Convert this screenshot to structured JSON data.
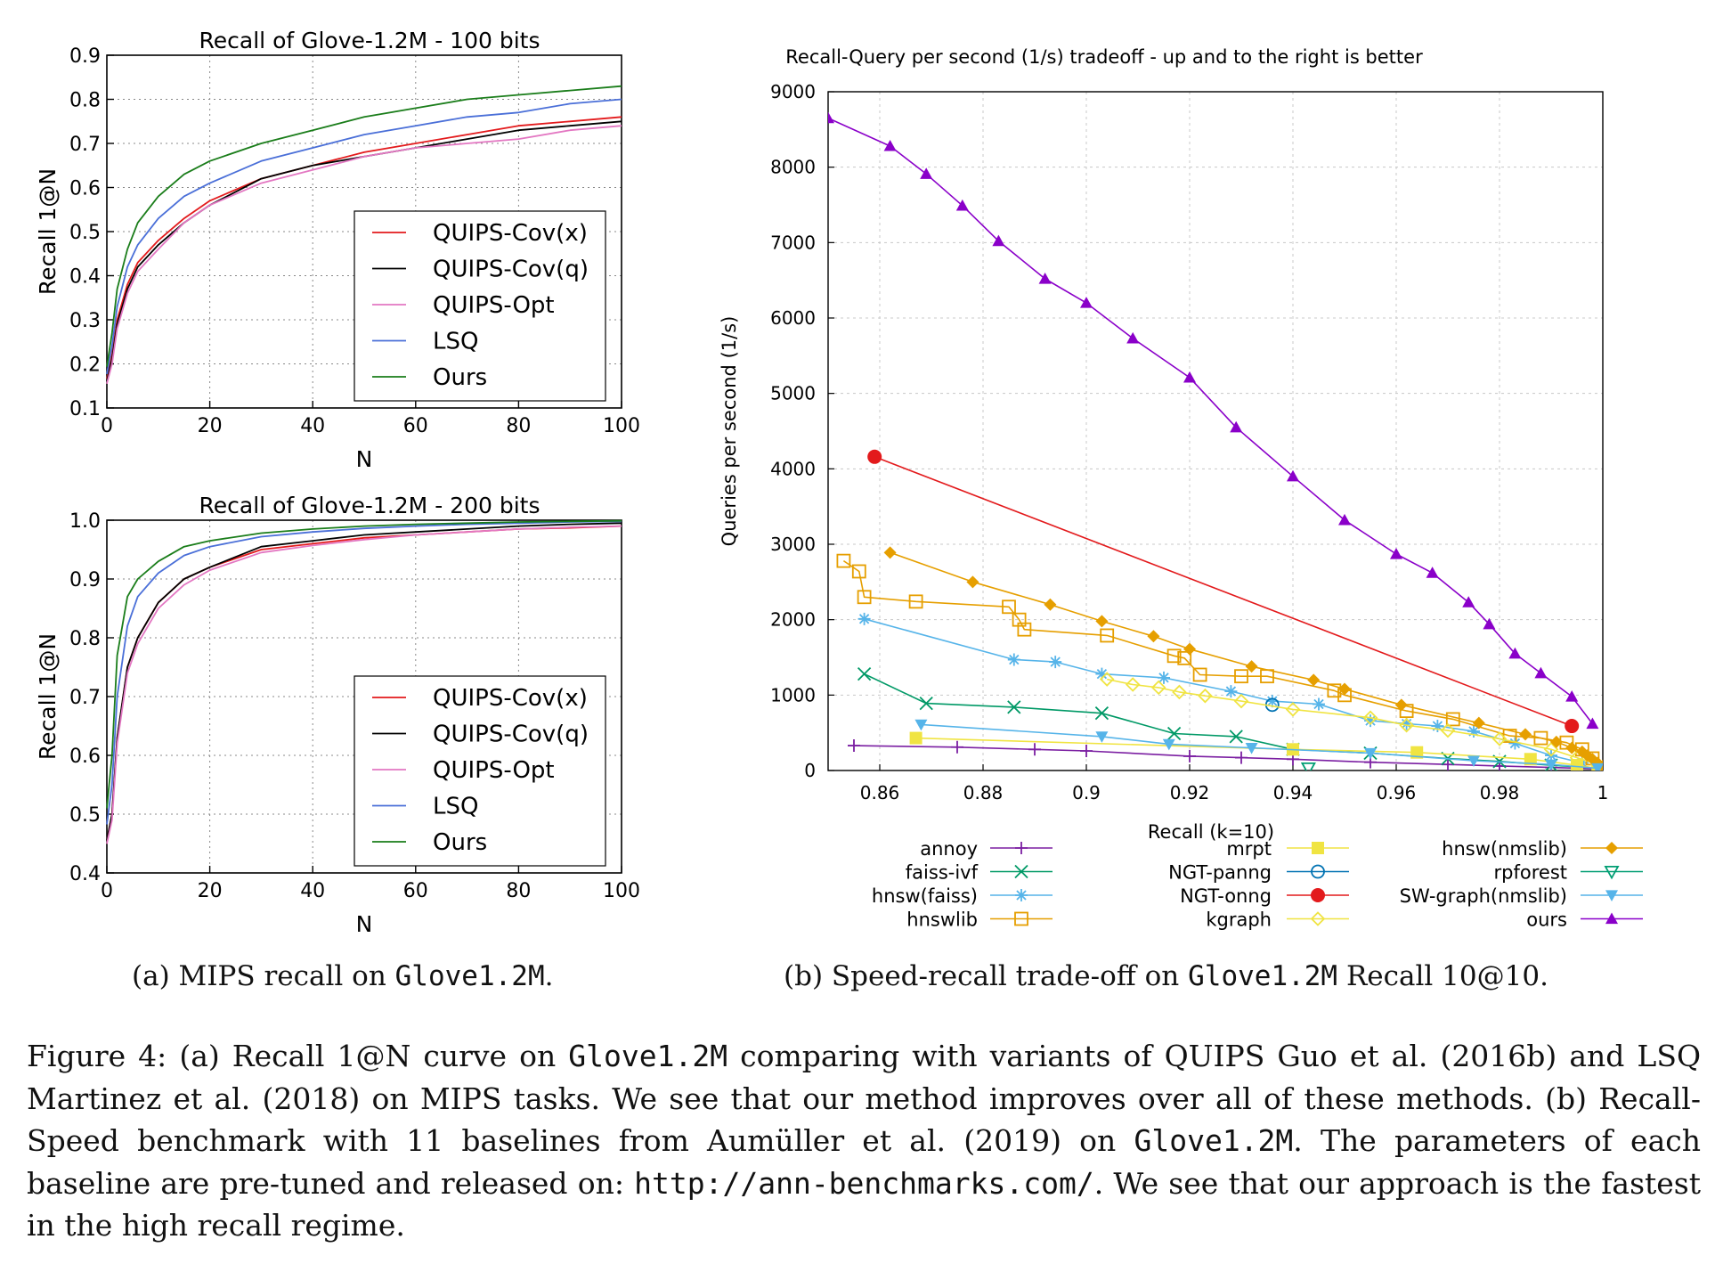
{
  "chart_data": [
    {
      "type": "line",
      "title": "Recall of Glove-1.2M - 100 bits",
      "xlabel": "N",
      "ylabel": "Recall 1@N",
      "xlim": [
        0,
        100
      ],
      "ylim": [
        0.1,
        0.9
      ],
      "xticks": [
        "0",
        "20",
        "40",
        "60",
        "80",
        "100"
      ],
      "yticks": [
        "0.1",
        "0.2",
        "0.3",
        "0.4",
        "0.5",
        "0.6",
        "0.7",
        "0.8",
        "0.9"
      ],
      "grid": true,
      "legend_position": "lower-right",
      "x": [
        1,
        2,
        4,
        6,
        10,
        15,
        20,
        30,
        40,
        50,
        60,
        70,
        80,
        90,
        100
      ],
      "series": [
        {
          "name": "QUIPS-Cov(x)",
          "color": "#e31a1c",
          "values": [
            0.22,
            0.3,
            0.38,
            0.43,
            0.48,
            0.53,
            0.57,
            0.62,
            0.65,
            0.68,
            0.7,
            0.72,
            0.74,
            0.75,
            0.76
          ]
        },
        {
          "name": "QUIPS-Cov(q)",
          "color": "#000000",
          "values": [
            0.21,
            0.29,
            0.37,
            0.42,
            0.47,
            0.52,
            0.56,
            0.62,
            0.65,
            0.67,
            0.69,
            0.71,
            0.73,
            0.74,
            0.75
          ]
        },
        {
          "name": "QUIPS-Opt",
          "color": "#e377c2",
          "values": [
            0.2,
            0.28,
            0.36,
            0.41,
            0.46,
            0.52,
            0.56,
            0.61,
            0.64,
            0.67,
            0.69,
            0.7,
            0.71,
            0.73,
            0.74
          ]
        },
        {
          "name": "LSQ",
          "color": "#4a6fd8",
          "values": [
            0.24,
            0.33,
            0.42,
            0.47,
            0.53,
            0.58,
            0.61,
            0.66,
            0.69,
            0.72,
            0.74,
            0.76,
            0.77,
            0.79,
            0.8
          ]
        },
        {
          "name": "Ours",
          "color": "#1a7d1a",
          "values": [
            0.27,
            0.37,
            0.46,
            0.52,
            0.58,
            0.63,
            0.66,
            0.7,
            0.73,
            0.76,
            0.78,
            0.8,
            0.81,
            0.82,
            0.83
          ]
        }
      ]
    },
    {
      "type": "line",
      "title": "Recall of Glove-1.2M - 200 bits",
      "xlabel": "N",
      "ylabel": "Recall 1@N",
      "xlim": [
        0,
        100
      ],
      "ylim": [
        0.4,
        1.0
      ],
      "xticks": [
        "0",
        "20",
        "40",
        "60",
        "80",
        "100"
      ],
      "yticks": [
        "0.4",
        "0.5",
        "0.6",
        "0.7",
        "0.8",
        "0.9",
        "1.0"
      ],
      "grid": true,
      "legend_position": "lower-right",
      "x": [
        1,
        2,
        4,
        6,
        10,
        15,
        20,
        30,
        40,
        50,
        60,
        70,
        80,
        90,
        100
      ],
      "series": [
        {
          "name": "QUIPS-Cov(x)",
          "color": "#e31a1c",
          "values": [
            0.5,
            0.63,
            0.75,
            0.8,
            0.86,
            0.9,
            0.92,
            0.95,
            0.96,
            0.97,
            0.975,
            0.98,
            0.985,
            0.987,
            0.99
          ]
        },
        {
          "name": "QUIPS-Cov(q)",
          "color": "#000000",
          "values": [
            0.5,
            0.63,
            0.75,
            0.8,
            0.86,
            0.9,
            0.92,
            0.955,
            0.965,
            0.975,
            0.98,
            0.985,
            0.99,
            0.993,
            0.995
          ]
        },
        {
          "name": "QUIPS-Opt",
          "color": "#e377c2",
          "values": [
            0.49,
            0.62,
            0.74,
            0.79,
            0.85,
            0.89,
            0.915,
            0.945,
            0.957,
            0.967,
            0.975,
            0.98,
            0.985,
            0.988,
            0.99
          ]
        },
        {
          "name": "LSQ",
          "color": "#4a6fd8",
          "values": [
            0.55,
            0.7,
            0.82,
            0.87,
            0.91,
            0.94,
            0.955,
            0.972,
            0.98,
            0.986,
            0.99,
            0.993,
            0.995,
            0.997,
            0.998
          ]
        },
        {
          "name": "Ours",
          "color": "#1a7d1a",
          "values": [
            0.6,
            0.77,
            0.87,
            0.9,
            0.93,
            0.955,
            0.965,
            0.978,
            0.985,
            0.99,
            0.993,
            0.995,
            0.997,
            0.998,
            0.999
          ]
        }
      ]
    },
    {
      "type": "line",
      "title": "Recall-Query per second (1/s) tradeoff - up and to the right is better",
      "xlabel": "Recall (k=10)",
      "ylabel": "Queries per second (1/s)",
      "xlim": [
        0.85,
        1.0
      ],
      "ylim": [
        0,
        9000
      ],
      "xticks": [
        "0.86",
        "0.88",
        "0.9",
        "0.92",
        "0.94",
        "0.96",
        "0.98",
        "1"
      ],
      "yticks": [
        "0",
        "1000",
        "2000",
        "3000",
        "4000",
        "5000",
        "6000",
        "7000",
        "8000",
        "9000"
      ],
      "grid": true,
      "legend_position": "below",
      "series": [
        {
          "name": "annoy",
          "color": "#7b1fa2",
          "marker": "plus",
          "points": [
            [
              0.855,
              330
            ],
            [
              0.875,
              310
            ],
            [
              0.89,
              280
            ],
            [
              0.9,
              260
            ],
            [
              0.92,
              190
            ],
            [
              0.93,
              170
            ],
            [
              0.94,
              150
            ],
            [
              0.955,
              110
            ],
            [
              0.97,
              80
            ],
            [
              0.98,
              60
            ],
            [
              0.99,
              40
            ],
            [
              1.0,
              20
            ]
          ]
        },
        {
          "name": "faiss-ivf",
          "color": "#009966",
          "marker": "x",
          "points": [
            [
              0.857,
              1280
            ],
            [
              0.869,
              890
            ],
            [
              0.886,
              840
            ],
            [
              0.903,
              760
            ],
            [
              0.917,
              490
            ],
            [
              0.929,
              450
            ],
            [
              0.94,
              280
            ],
            [
              0.955,
              230
            ],
            [
              0.97,
              160
            ],
            [
              0.98,
              120
            ],
            [
              0.99,
              70
            ],
            [
              1.0,
              30
            ]
          ]
        },
        {
          "name": "hnsw(faiss)",
          "color": "#56b4e9",
          "marker": "star",
          "points": [
            [
              0.857,
              2010
            ],
            [
              0.886,
              1470
            ],
            [
              0.894,
              1440
            ],
            [
              0.903,
              1280
            ],
            [
              0.915,
              1230
            ],
            [
              0.928,
              1050
            ],
            [
              0.936,
              920
            ],
            [
              0.945,
              880
            ],
            [
              0.955,
              660
            ],
            [
              0.962,
              620
            ],
            [
              0.968,
              590
            ],
            [
              0.975,
              520
            ],
            [
              0.983,
              360
            ],
            [
              0.99,
              200
            ],
            [
              0.996,
              100
            ]
          ]
        },
        {
          "name": "hnswlib",
          "color": "#e69f00",
          "marker": "square",
          "points": [
            [
              0.853,
              2780
            ],
            [
              0.856,
              2640
            ],
            [
              0.857,
              2300
            ],
            [
              0.867,
              2240
            ],
            [
              0.885,
              2170
            ],
            [
              0.887,
              2000
            ],
            [
              0.888,
              1870
            ],
            [
              0.904,
              1790
            ],
            [
              0.917,
              1520
            ],
            [
              0.919,
              1490
            ],
            [
              0.922,
              1270
            ],
            [
              0.93,
              1250
            ],
            [
              0.935,
              1250
            ],
            [
              0.948,
              1060
            ],
            [
              0.95,
              1000
            ],
            [
              0.962,
              790
            ],
            [
              0.971,
              680
            ],
            [
              0.982,
              460
            ],
            [
              0.988,
              430
            ],
            [
              0.993,
              370
            ],
            [
              0.996,
              280
            ],
            [
              0.998,
              160
            ]
          ]
        },
        {
          "name": "mrpt",
          "color": "#f0e442",
          "marker": "filled-square",
          "points": [
            [
              0.867,
              430
            ],
            [
              0.94,
              280
            ],
            [
              0.964,
              240
            ],
            [
              0.986,
              150
            ],
            [
              0.995,
              70
            ],
            [
              0.999,
              30
            ]
          ]
        },
        {
          "name": "NGT-panng",
          "color": "#0072b2",
          "marker": "circle",
          "points": [
            [
              0.936,
              870
            ]
          ]
        },
        {
          "name": "NGT-onng",
          "color": "#e31a1c",
          "marker": "filled-circle",
          "points": [
            [
              0.859,
              4160
            ],
            [
              0.994,
              590
            ]
          ]
        },
        {
          "name": "kgraph",
          "color": "#f0e442",
          "marker": "diamond",
          "points": [
            [
              0.904,
              1210
            ],
            [
              0.909,
              1140
            ],
            [
              0.914,
              1100
            ],
            [
              0.918,
              1040
            ],
            [
              0.923,
              990
            ],
            [
              0.93,
              920
            ],
            [
              0.94,
              810
            ],
            [
              0.955,
              700
            ],
            [
              0.962,
              600
            ],
            [
              0.97,
              530
            ],
            [
              0.98,
              420
            ],
            [
              0.99,
              280
            ],
            [
              0.995,
              170
            ],
            [
              0.999,
              80
            ]
          ]
        },
        {
          "name": "hnsw(nmslib)",
          "color": "#e69f00",
          "marker": "filled-diamond",
          "points": [
            [
              0.862,
              2890
            ],
            [
              0.878,
              2500
            ],
            [
              0.893,
              2200
            ],
            [
              0.903,
              1980
            ],
            [
              0.913,
              1780
            ],
            [
              0.92,
              1610
            ],
            [
              0.932,
              1380
            ],
            [
              0.944,
              1200
            ],
            [
              0.95,
              1080
            ],
            [
              0.961,
              870
            ],
            [
              0.976,
              630
            ],
            [
              0.985,
              480
            ],
            [
              0.991,
              380
            ],
            [
              0.994,
              300
            ],
            [
              0.996,
              250
            ],
            [
              0.997,
              200
            ],
            [
              0.998,
              150
            ],
            [
              0.999,
              100
            ],
            [
              1.0,
              60
            ]
          ]
        },
        {
          "name": "rpforest",
          "color": "#009e73",
          "marker": "triangle-down",
          "points": [
            [
              0.943,
              30
            ]
          ]
        },
        {
          "name": "SW-graph(nmslib)",
          "color": "#56b4e9",
          "marker": "filled-triangle-down",
          "points": [
            [
              0.868,
              610
            ],
            [
              0.903,
              450
            ],
            [
              0.916,
              350
            ],
            [
              0.932,
              300
            ],
            [
              0.955,
              230
            ],
            [
              0.975,
              130
            ],
            [
              0.99,
              80
            ],
            [
              0.999,
              30
            ]
          ]
        },
        {
          "name": "ours",
          "color": "#8a00c9",
          "marker": "filled-triangle-up",
          "points": [
            [
              0.85,
              8650
            ],
            [
              0.862,
              8280
            ],
            [
              0.869,
              7910
            ],
            [
              0.876,
              7490
            ],
            [
              0.883,
              7020
            ],
            [
              0.892,
              6520
            ],
            [
              0.9,
              6200
            ],
            [
              0.909,
              5730
            ],
            [
              0.92,
              5210
            ],
            [
              0.929,
              4550
            ],
            [
              0.94,
              3900
            ],
            [
              0.95,
              3320
            ],
            [
              0.96,
              2870
            ],
            [
              0.967,
              2620
            ],
            [
              0.974,
              2230
            ],
            [
              0.978,
              1940
            ],
            [
              0.983,
              1550
            ],
            [
              0.988,
              1290
            ],
            [
              0.994,
              980
            ],
            [
              0.998,
              620
            ]
          ]
        }
      ]
    }
  ],
  "captions": {
    "a_prefix": "(a)  MIPS recall on ",
    "a_code": "Glove1.2M",
    "a_suffix": ".",
    "b_prefix": "(b) Speed-recall trade-off on ",
    "b_code": "Glove1.2M",
    "b_suffix": " Recall 10@10."
  },
  "figure_caption": {
    "t1": "Figure 4:  (a) Recall 1@N curve on ",
    "c1": "Glove1.2M",
    "t2": " comparing with variants of QUIPS Guo et al. (2016b) and LSQ Martinez et al. (2018) on MIPS tasks. We see that our method improves over all of these methods. (b) Recall-Speed benchmark with 11 baselines from Aumüller et al. (2019) on ",
    "c2": "Glove1.2M",
    "t3": ". The parameters of each baseline are pre-tuned and released on: ",
    "c3": "http://ann-benchmarks.com/",
    "t4": ". We see that our approach is the fastest in the high recall regime."
  }
}
